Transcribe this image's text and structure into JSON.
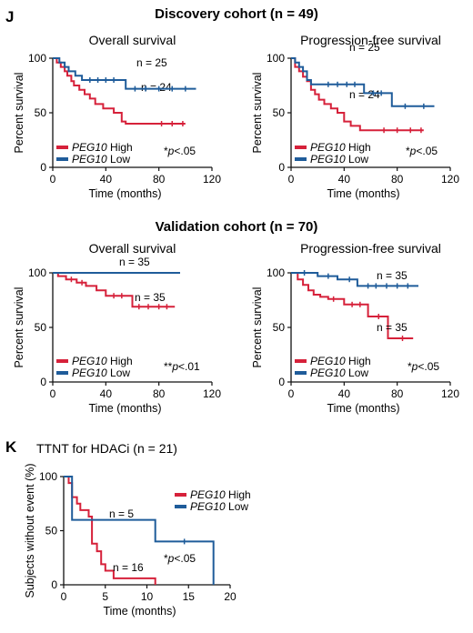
{
  "panels": {
    "J": {
      "letter": "J",
      "discovery_title": "Discovery cohort (n = 49)",
      "validation_title": "Validation cohort (n = 70)"
    },
    "K": {
      "letter": "K",
      "title": "TTNT for HDACi (n = 21)"
    }
  },
  "colors": {
    "high": "#d6213a",
    "low": "#1f5c9a",
    "axis": "#111111"
  },
  "legend_entries": [
    {
      "gene": "PEG10",
      "group": "High",
      "color": "#d6213a"
    },
    {
      "gene": "PEG10",
      "group": "Low",
      "color": "#1f5c9a"
    }
  ],
  "chart_data": [
    {
      "id": "disc-os",
      "type": "line",
      "title": "Overall survival",
      "xlabel": "Time (months)",
      "ylabel": "Percent survival",
      "xlim": [
        0,
        120
      ],
      "ylim": [
        0,
        100
      ],
      "xticks": [
        0,
        40,
        80,
        120
      ],
      "yticks": [
        0,
        50,
        100
      ],
      "legend": "bottom-left",
      "pvalue": "*p<.05",
      "series": [
        {
          "group": "high",
          "label": "n = 24",
          "steps": [
            [
              0,
              100
            ],
            [
              3,
              96
            ],
            [
              6,
              92
            ],
            [
              9,
              88
            ],
            [
              11,
              84
            ],
            [
              14,
              79
            ],
            [
              16,
              75
            ],
            [
              20,
              71
            ],
            [
              24,
              67
            ],
            [
              28,
              63
            ],
            [
              32,
              58
            ],
            [
              38,
              54
            ],
            [
              46,
              50
            ],
            [
              52,
              42
            ],
            [
              55,
              40
            ],
            [
              100,
              40
            ]
          ],
          "censor": [
            82,
            90,
            98
          ]
        },
        {
          "group": "low",
          "label": "n = 25",
          "steps": [
            [
              0,
              100
            ],
            [
              5,
              96
            ],
            [
              9,
              92
            ],
            [
              12,
              88
            ],
            [
              17,
              84
            ],
            [
              22,
              80
            ],
            [
              55,
              72
            ],
            [
              108,
              72
            ]
          ],
          "censor": [
            28,
            34,
            40,
            46,
            62,
            70,
            80,
            90,
            100
          ]
        }
      ]
    },
    {
      "id": "disc-pfs",
      "type": "line",
      "title": "Progression-free survival",
      "xlabel": "Time (months)",
      "ylabel": "Percent survival",
      "xlim": [
        0,
        120
      ],
      "ylim": [
        0,
        100
      ],
      "xticks": [
        0,
        40,
        80,
        120
      ],
      "yticks": [
        0,
        50,
        100
      ],
      "legend": "bottom-left",
      "pvalue": "*p<.05",
      "series": [
        {
          "group": "high",
          "label": "n = 24",
          "steps": [
            [
              0,
              100
            ],
            [
              3,
              92
            ],
            [
              6,
              88
            ],
            [
              9,
              83
            ],
            [
              12,
              79
            ],
            [
              15,
              71
            ],
            [
              18,
              67
            ],
            [
              21,
              62
            ],
            [
              25,
              58
            ],
            [
              30,
              54
            ],
            [
              35,
              50
            ],
            [
              40,
              42
            ],
            [
              45,
              38
            ],
            [
              52,
              34
            ],
            [
              100,
              34
            ]
          ],
          "censor": [
            70,
            80,
            90,
            98
          ]
        },
        {
          "group": "low",
          "label": "n = 25",
          "steps": [
            [
              0,
              100
            ],
            [
              3,
              96
            ],
            [
              6,
              92
            ],
            [
              9,
              88
            ],
            [
              12,
              80
            ],
            [
              15,
              76
            ],
            [
              55,
              68
            ],
            [
              76,
              56
            ],
            [
              108,
              56
            ]
          ],
          "censor": [
            28,
            35,
            42,
            48,
            62,
            68,
            86,
            100
          ]
        }
      ]
    },
    {
      "id": "val-os",
      "type": "line",
      "title": "Overall survival",
      "xlabel": "Time (months)",
      "ylabel": "Percent survival",
      "xlim": [
        0,
        120
      ],
      "ylim": [
        0,
        100
      ],
      "xticks": [
        0,
        40,
        80,
        120
      ],
      "yticks": [
        0,
        50,
        100
      ],
      "legend": "bottom-left",
      "pvalue": "**p<.01",
      "series": [
        {
          "group": "high",
          "label": "n = 35",
          "steps": [
            [
              0,
              100
            ],
            [
              4,
              97
            ],
            [
              10,
              94
            ],
            [
              18,
              91
            ],
            [
              25,
              88
            ],
            [
              33,
              84
            ],
            [
              40,
              79
            ],
            [
              60,
              69
            ],
            [
              92,
              69
            ]
          ],
          "censor": [
            14,
            22,
            46,
            52,
            65,
            72,
            80,
            86
          ]
        },
        {
          "group": "low",
          "label": "n = 35",
          "steps": [
            [
              0,
              100
            ],
            [
              96,
              100
            ]
          ],
          "censor": []
        }
      ]
    },
    {
      "id": "val-pfs",
      "type": "line",
      "title": "Progression-free survival",
      "xlabel": "Time (months)",
      "ylabel": "Percent survival",
      "xlim": [
        0,
        120
      ],
      "ylim": [
        0,
        100
      ],
      "xticks": [
        0,
        40,
        80,
        120
      ],
      "yticks": [
        0,
        50,
        100
      ],
      "legend": "bottom-left",
      "pvalue": "*p<.05",
      "series": [
        {
          "group": "high",
          "label": "n = 35",
          "steps": [
            [
              0,
              100
            ],
            [
              5,
              94
            ],
            [
              9,
              89
            ],
            [
              13,
              84
            ],
            [
              17,
              80
            ],
            [
              22,
              78
            ],
            [
              28,
              76
            ],
            [
              40,
              71
            ],
            [
              58,
              60
            ],
            [
              73,
              40
            ],
            [
              92,
              40
            ]
          ],
          "censor": [
            32,
            46,
            52,
            66,
            84
          ]
        },
        {
          "group": "low",
          "label": "n = 35",
          "steps": [
            [
              0,
              100
            ],
            [
              20,
              97
            ],
            [
              35,
              94
            ],
            [
              50,
              88
            ],
            [
              96,
              88
            ]
          ],
          "censor": [
            10,
            28,
            44,
            58,
            64,
            72,
            80,
            88
          ]
        }
      ]
    },
    {
      "id": "ttnt",
      "type": "line",
      "title": "",
      "xlabel": "Time (months)",
      "ylabel": "Subjects without event (%)",
      "xlim": [
        0,
        20
      ],
      "ylim": [
        0,
        100
      ],
      "xticks": [
        0,
        5,
        10,
        15,
        20
      ],
      "yticks": [
        0,
        50,
        100
      ],
      "legend": "top-right",
      "pvalue": "*p<.05",
      "series": [
        {
          "group": "high",
          "label": "n = 16",
          "steps": [
            [
              0,
              100
            ],
            [
              0.6,
              94
            ],
            [
              1,
              81
            ],
            [
              1.6,
              75
            ],
            [
              2,
              69
            ],
            [
              3,
              63
            ],
            [
              3.4,
              38
            ],
            [
              4,
              31
            ],
            [
              4.5,
              19
            ],
            [
              5,
              13
            ],
            [
              6,
              6
            ],
            [
              11,
              0
            ]
          ],
          "censor": []
        },
        {
          "group": "low",
          "label": "n = 5",
          "steps": [
            [
              0,
              100
            ],
            [
              1,
              60
            ],
            [
              11,
              40
            ],
            [
              18,
              0
            ]
          ],
          "censor": [
            14.5
          ]
        }
      ]
    }
  ]
}
